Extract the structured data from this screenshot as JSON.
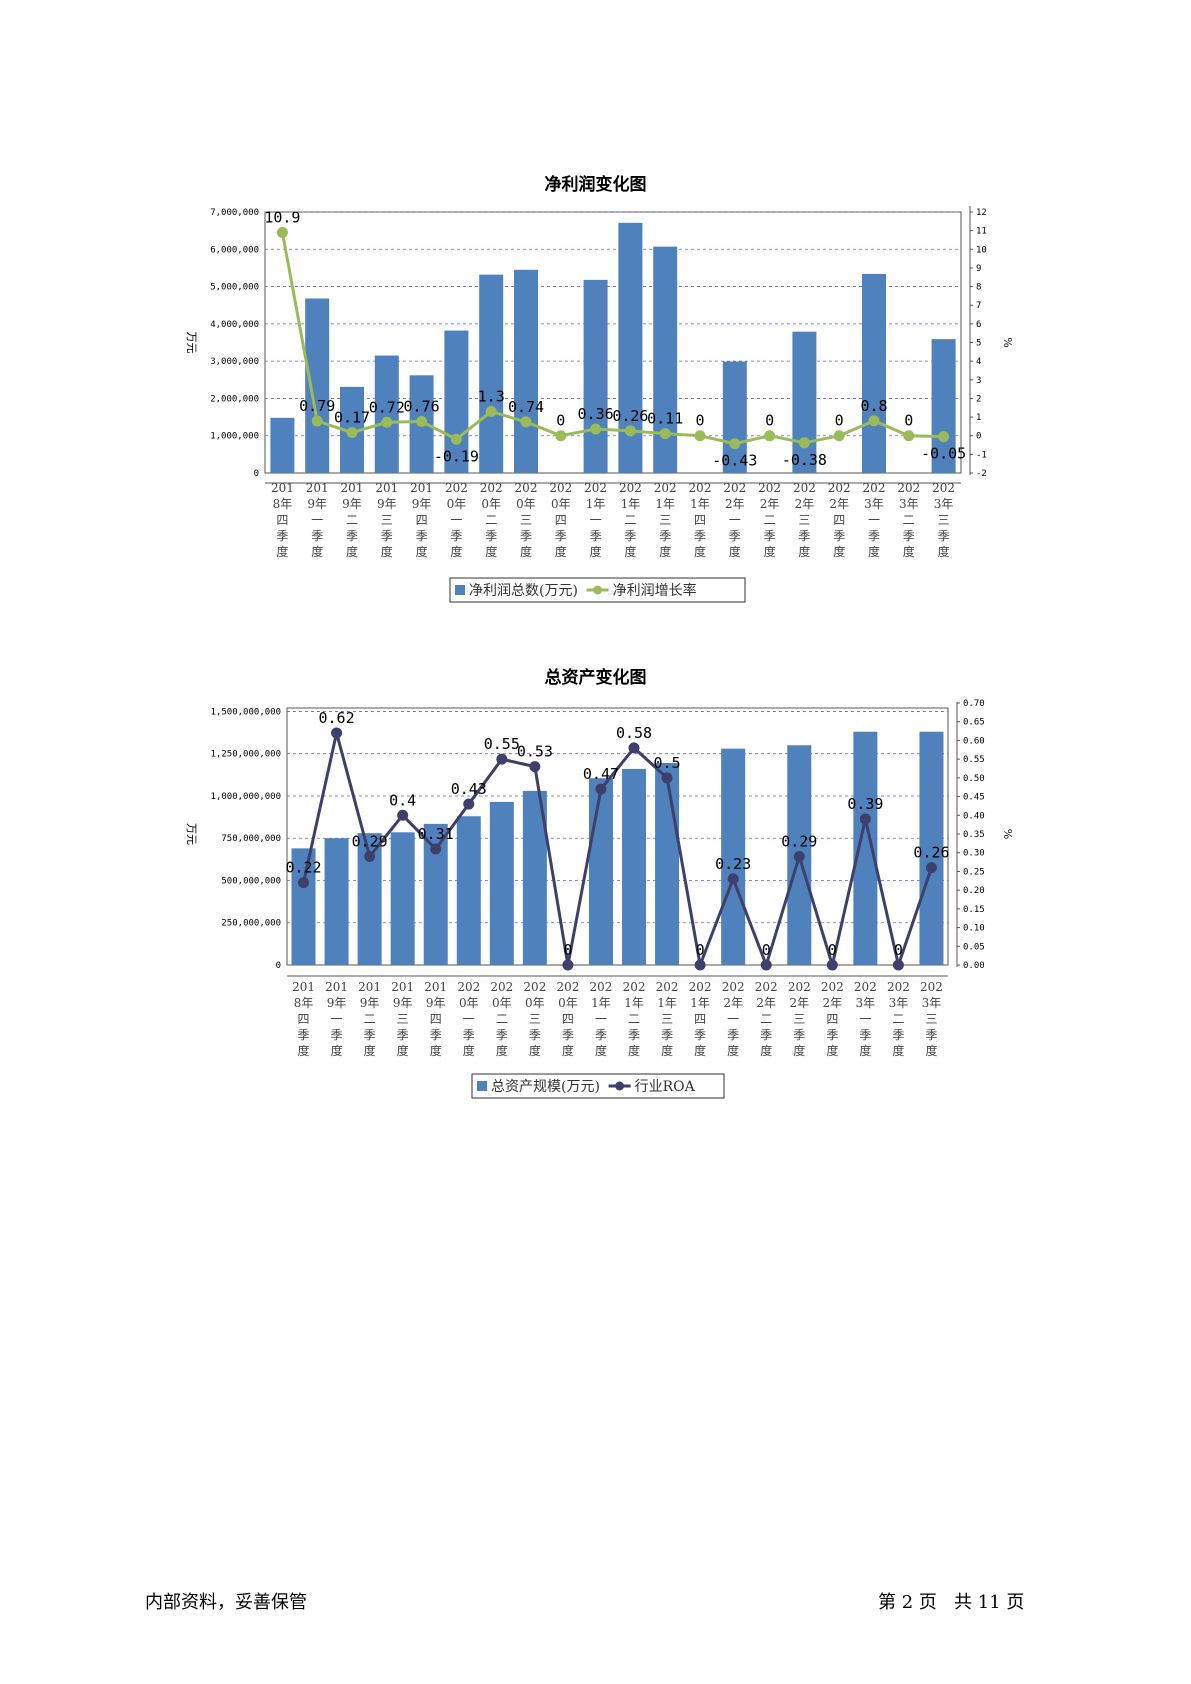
{
  "footer": {
    "left": "内部资料，妥善保管",
    "right": "第 2 页   共 11 页"
  },
  "chart_data": [
    {
      "type": "bar",
      "title": "净利润变化图",
      "ylabel": "万元",
      "y2label": "%",
      "categories": [
        "2018年四季度",
        "2019年一季度",
        "2019年二季度",
        "2019年三季度",
        "2019年四季度",
        "2020年一季度",
        "2020年二季度",
        "2020年三季度",
        "2020年四季度",
        "2021年一季度",
        "2021年二季度",
        "2021年三季度",
        "2021年四季度",
        "2022年一季度",
        "2022年二季度",
        "2022年三季度",
        "2022年四季度",
        "2023年一季度",
        "2023年二季度",
        "2023年三季度"
      ],
      "ylim": [
        0,
        7000000
      ],
      "y_ticks": [
        "0",
        "1,000,000",
        "2,000,000",
        "3,000,000",
        "4,000,000",
        "5,000,000",
        "6,000,000",
        "7,000,000"
      ],
      "y2lim": [
        -2,
        12
      ],
      "y2_ticks": [
        "-2",
        "-1",
        "0",
        "1",
        "2",
        "3",
        "4",
        "5",
        "6",
        "7",
        "8",
        "9",
        "10",
        "11",
        "12"
      ],
      "grid": true,
      "legend_position": "bottom",
      "series": [
        {
          "name": "净利润总数(万元)",
          "type": "bar",
          "axis": "left",
          "color": "#4f81bd",
          "values": [
            1480000,
            4680000,
            2310000,
            3150000,
            2620000,
            3820000,
            5320000,
            5450000,
            0,
            5180000,
            6710000,
            6070000,
            0,
            2990000,
            0,
            3790000,
            0,
            5340000,
            0,
            3590000
          ]
        },
        {
          "name": "净利润增长率",
          "type": "line",
          "axis": "right",
          "color": "#9bbb59",
          "values": [
            10.9,
            0.79,
            0.17,
            0.72,
            0.76,
            -0.19,
            1.3,
            0.74,
            0,
            0.36,
            0.26,
            0.11,
            0,
            -0.43,
            0,
            -0.38,
            0,
            0.8,
            0,
            -0.05
          ],
          "labels": [
            "10.9",
            "0.79",
            "0.17",
            "0.72",
            "0.76",
            "-0.19",
            "1.3",
            "0.74",
            "0",
            "0.36",
            "0.26",
            "0.11",
            "0",
            "-0.43",
            "0",
            "-0.38",
            "0",
            "0.8",
            "0",
            "-0.05"
          ]
        }
      ]
    },
    {
      "type": "bar",
      "title": "总资产变化图",
      "ylabel": "万元",
      "y2label": "%",
      "categories": [
        "2018年四季度",
        "2019年一季度",
        "2019年二季度",
        "2019年三季度",
        "2019年四季度",
        "2020年一季度",
        "2020年二季度",
        "2020年三季度",
        "2020年四季度",
        "2021年一季度",
        "2021年二季度",
        "2021年三季度",
        "2021年四季度",
        "2022年一季度",
        "2022年二季度",
        "2022年三季度",
        "2022年四季度",
        "2023年一季度",
        "2023年二季度",
        "2023年三季度"
      ],
      "ylim": [
        0,
        1550000000
      ],
      "y_ticks": [
        "0",
        "250,000,000",
        "500,000,000",
        "750,000,000",
        "1,000,000,000",
        "1,250,000,000",
        "1,500,000,000"
      ],
      "y2lim": [
        0,
        0.7
      ],
      "y2_ticks": [
        "0.00",
        "0.05",
        "0.10",
        "0.15",
        "0.20",
        "0.25",
        "0.30",
        "0.35",
        "0.40",
        "0.45",
        "0.50",
        "0.55",
        "0.60",
        "0.65",
        "0.70"
      ],
      "grid": true,
      "legend_position": "bottom",
      "series": [
        {
          "name": "总资产规模(万元)",
          "type": "bar",
          "axis": "left",
          "color": "#4f81bd",
          "values": [
            690000000,
            750000000,
            780000000,
            785000000,
            835000000,
            880000000,
            965000000,
            1030000000,
            0,
            1105000000,
            1160000000,
            1195000000,
            0,
            1280000000,
            0,
            1300000000,
            0,
            1380000000,
            0,
            1380000000
          ]
        },
        {
          "name": "行业ROA",
          "type": "line",
          "axis": "right",
          "color": "#3f3f6b",
          "values": [
            0.22,
            0.62,
            0.29,
            0.4,
            0.31,
            0.43,
            0.55,
            0.53,
            0,
            0.47,
            0.58,
            0.5,
            0,
            0.23,
            0,
            0.29,
            0,
            0.39,
            0,
            0.26
          ],
          "labels": [
            "0.22",
            "0.62",
            "0.29",
            "0.4",
            "0.31",
            "0.43",
            "0.55",
            "0.53",
            "0",
            "0.47",
            "0.58",
            "0.5",
            "0",
            "0.23",
            "0",
            "0.29",
            "0",
            "0.39",
            "0",
            "0.26"
          ]
        }
      ]
    }
  ]
}
